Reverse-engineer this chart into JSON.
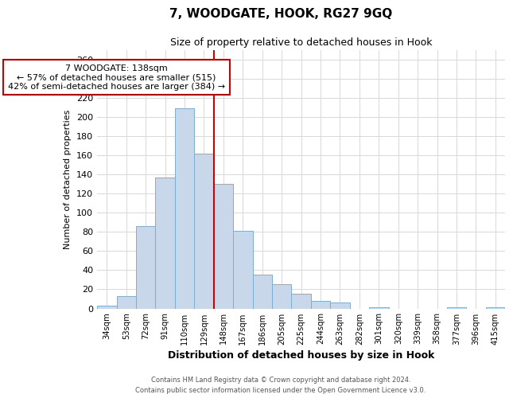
{
  "title": "7, WOODGATE, HOOK, RG27 9GQ",
  "subtitle": "Size of property relative to detached houses in Hook",
  "xlabel": "Distribution of detached houses by size in Hook",
  "ylabel": "Number of detached properties",
  "bar_color": "#c8d8ea",
  "bar_edge_color": "#7bafd4",
  "categories": [
    "34sqm",
    "53sqm",
    "72sqm",
    "91sqm",
    "110sqm",
    "129sqm",
    "148sqm",
    "167sqm",
    "186sqm",
    "205sqm",
    "225sqm",
    "244sqm",
    "263sqm",
    "282sqm",
    "301sqm",
    "320sqm",
    "339sqm",
    "358sqm",
    "377sqm",
    "396sqm",
    "415sqm"
  ],
  "values": [
    3,
    13,
    86,
    137,
    209,
    162,
    130,
    81,
    35,
    25,
    15,
    8,
    6,
    0,
    1,
    0,
    0,
    0,
    1,
    0,
    1
  ],
  "vline_x": 5.5,
  "vline_color": "#cc0000",
  "annotation_text": "7 WOODGATE: 138sqm\n← 57% of detached houses are smaller (515)\n42% of semi-detached houses are larger (384) →",
  "annotation_box_color": "#ffffff",
  "annotation_box_edge": "#cc0000",
  "ylim": [
    0,
    270
  ],
  "yticks": [
    0,
    20,
    40,
    60,
    80,
    100,
    120,
    140,
    160,
    180,
    200,
    220,
    240,
    260
  ],
  "footer_line1": "Contains HM Land Registry data © Crown copyright and database right 2024.",
  "footer_line2": "Contains public sector information licensed under the Open Government Licence v3.0.",
  "grid_color": "#d8d8d8"
}
